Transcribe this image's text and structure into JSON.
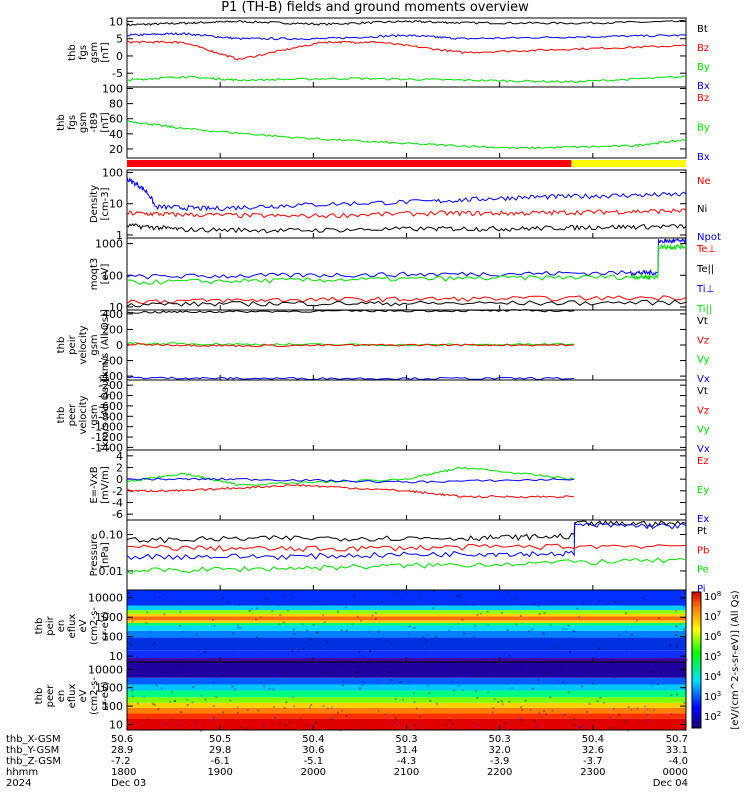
{
  "title": "P1 (TH-B) fields and ground moments overview",
  "colors": {
    "black": "#000000",
    "red": "#ff0000",
    "green": "#00dd00",
    "blue": "#0000ff",
    "yellow": "#ffff00"
  },
  "chart_data": {
    "type": "line",
    "time_range": [
      "2024-12-03 17:30",
      "2024-12-04 00:00"
    ],
    "panels": [
      {
        "id": "fgs",
        "ylabel": [
          "thb",
          "fgs",
          "gsm",
          "[nT]"
        ],
        "ylim": [
          -9,
          11
        ],
        "ticks": [
          10,
          5,
          0,
          -5
        ],
        "legend": [
          {
            "t": "Bt",
            "c": "black"
          },
          {
            "t": "Bz",
            "c": "red"
          },
          {
            "t": "By",
            "c": "green"
          },
          {
            "t": "Bx",
            "c": "blue"
          }
        ],
        "series": [
          {
            "c": "black",
            "x": [
              0,
              0.1,
              0.2,
              0.35,
              0.5,
              0.6,
              0.8,
              1.0
            ],
            "y": [
              9,
              9.5,
              10,
              9.2,
              10,
              9.6,
              9.5,
              10
            ]
          },
          {
            "c": "blue",
            "x": [
              0,
              0.1,
              0.2,
              0.35,
              0.5,
              0.6,
              0.8,
              1.0
            ],
            "y": [
              6,
              6.5,
              5,
              5,
              6,
              5,
              5.5,
              6
            ]
          },
          {
            "c": "red",
            "x": [
              0,
              0.1,
              0.2,
              0.35,
              0.45,
              0.6,
              0.8,
              1.0
            ],
            "y": [
              4,
              4,
              -1,
              4,
              4,
              1,
              2,
              3
            ]
          },
          {
            "c": "green",
            "x": [
              0,
              0.1,
              0.2,
              0.4,
              0.6,
              0.8,
              1.0
            ],
            "y": [
              -7,
              -6,
              -7,
              -6.5,
              -7,
              -7.5,
              -6
            ]
          }
        ]
      },
      {
        "id": "fgsdip",
        "ylabel": [
          "thb",
          "fgs",
          "gsm",
          "-t89",
          "[nT]"
        ],
        "ylim": [
          8,
          102
        ],
        "ticks": [
          100,
          80,
          60,
          40,
          20
        ],
        "legend": [
          {
            "t": "Bz",
            "c": "red"
          },
          {
            "t": "By",
            "c": "green"
          },
          {
            "t": "Bx",
            "c": "blue"
          }
        ],
        "series": [
          {
            "c": "green",
            "x": [
              0,
              0.1,
              0.3,
              0.5,
              0.7,
              0.9,
              1.0
            ],
            "y": [
              57,
              47,
              35,
              27,
              21,
              24,
              32
            ]
          }
        ]
      },
      {
        "id": "density",
        "ylabel": [
          "Density",
          "[cm-3]"
        ],
        "ylim": [
          0.8,
          120
        ],
        "log": true,
        "ticks": [
          100,
          10,
          1
        ],
        "ticklabels": [
          "100",
          "10",
          "1"
        ],
        "legend": [
          {
            "t": "Ne",
            "c": "red"
          },
          {
            "t": "Ni",
            "c": "black"
          },
          {
            "t": "Npot",
            "c": "blue"
          }
        ],
        "series": [
          {
            "c": "blue",
            "x": [
              0,
              0.05,
              0.15,
              0.3,
              0.55,
              0.7,
              0.85,
              1.0
            ],
            "y": [
              60,
              8,
              7,
              9,
              12,
              16,
              18,
              20
            ]
          },
          {
            "c": "red",
            "x": [
              0,
              0.1,
              0.3,
              0.55,
              0.7,
              0.85,
              1.0
            ],
            "y": [
              5,
              4.5,
              4,
              5,
              5,
              5.5,
              6
            ]
          },
          {
            "c": "black",
            "x": [
              0,
              0.1,
              0.3,
              0.55,
              0.7,
              0.85,
              1.0
            ],
            "y": [
              2,
              1.5,
              1.4,
              1.6,
              1.6,
              1.8,
              1.9
            ]
          }
        ]
      },
      {
        "id": "temp",
        "ylabel": [
          "moqt3",
          "[eV]"
        ],
        "ylim": [
          8,
          1500
        ],
        "log": true,
        "ticks": [
          1000,
          100,
          10
        ],
        "ticklabels": [
          "1000",
          "100",
          "10"
        ],
        "legend": [
          {
            "t": "Te⊥",
            "c": "red"
          },
          {
            "t": "Te||",
            "c": "black"
          },
          {
            "t": "Ti⊥",
            "c": "blue"
          },
          {
            "t": "Ti||",
            "c": "green"
          }
        ],
        "series": [
          {
            "c": "blue",
            "x": [
              0,
              0.3,
              0.6,
              0.9,
              0.95,
              0.951,
              1.0
            ],
            "y": [
              90,
              100,
              110,
              120,
              120,
              1200,
              1200
            ]
          },
          {
            "c": "green",
            "x": [
              0,
              0.3,
              0.6,
              0.9,
              0.95,
              0.951,
              1.0
            ],
            "y": [
              60,
              70,
              80,
              90,
              90,
              800,
              800
            ]
          },
          {
            "c": "red",
            "x": [
              0,
              0.3,
              0.6,
              1.0
            ],
            "y": [
              15,
              17,
              18,
              20
            ]
          },
          {
            "c": "black",
            "x": [
              0,
              0.3,
              0.6,
              1.0
            ],
            "y": [
              12,
              13,
              13,
              14
            ]
          }
        ]
      },
      {
        "id": "peirv",
        "ylabel": [
          "thb",
          "peir",
          "velocity",
          "gsm",
          "[km/s (All Qs)]"
        ],
        "ylim": [
          -450,
          450
        ],
        "ticks": [
          400,
          200,
          0,
          -200,
          -400
        ],
        "legend": [
          {
            "t": "Vt",
            "c": "black"
          },
          {
            "t": "Vz",
            "c": "red"
          },
          {
            "t": "Vy",
            "c": "green"
          },
          {
            "t": "Vx",
            "c": "blue"
          }
        ],
        "series": [
          {
            "c": "black",
            "x": [
              0,
              0.2,
              0.5,
              0.8
            ],
            "y": [
              420,
              430,
              440,
              440
            ]
          },
          {
            "c": "green",
            "x": [
              0,
              0.2,
              0.5,
              0.8
            ],
            "y": [
              20,
              10,
              0,
              10
            ]
          },
          {
            "c": "red",
            "x": [
              0,
              0.2,
              0.5,
              0.8
            ],
            "y": [
              10,
              -10,
              0,
              0
            ]
          },
          {
            "c": "blue",
            "x": [
              0,
              0.2,
              0.5,
              0.8
            ],
            "y": [
              -420,
              -430,
              -430,
              -430
            ]
          }
        ]
      },
      {
        "id": "peerv",
        "ylabel": [
          "thb",
          "peer",
          "velocity",
          "gsm",
          "[km/s (All Qs)]"
        ],
        "ylim": [
          -1450,
          -100
        ],
        "ticks": [
          -200,
          -400,
          -600,
          -800,
          -1000,
          -1200,
          -1400
        ],
        "legend": [
          {
            "t": "Vt",
            "c": "black"
          },
          {
            "t": "Vz",
            "c": "red"
          },
          {
            "t": "Vy",
            "c": "green"
          },
          {
            "t": "Vx",
            "c": "blue"
          }
        ],
        "series": []
      },
      {
        "id": "efield",
        "ylabel": [
          "E=-VxB",
          "[mV/m]"
        ],
        "ylim": [
          -7,
          5
        ],
        "ticks": [
          4,
          2,
          0,
          -2,
          -4,
          -6
        ],
        "legend": [
          {
            "t": "Ez",
            "c": "red"
          },
          {
            "t": "Ey",
            "c": "green"
          },
          {
            "t": "Ex",
            "c": "blue"
          }
        ],
        "series": [
          {
            "c": "green",
            "x": [
              0,
              0.1,
              0.2,
              0.5,
              0.6,
              0.8
            ],
            "y": [
              -0.5,
              1,
              -1,
              0,
              2,
              0
            ]
          },
          {
            "c": "blue",
            "x": [
              0,
              0.2,
              0.5,
              0.8
            ],
            "y": [
              0,
              0,
              -0.5,
              0
            ]
          },
          {
            "c": "red",
            "x": [
              0,
              0.1,
              0.3,
              0.5,
              0.6,
              0.8
            ],
            "y": [
              -2,
              -2,
              -1,
              -2,
              -3,
              -3
            ]
          }
        ]
      },
      {
        "id": "pressure",
        "ylabel": [
          "Pressure",
          "[nPa]"
        ],
        "ylim": [
          0.003,
          0.25
        ],
        "log": true,
        "ticks": [
          0.1,
          0.01
        ],
        "ticklabels": [
          "0.10",
          "0.01"
        ],
        "legend": [
          {
            "t": "Pt",
            "c": "black"
          },
          {
            "t": "Pb",
            "c": "red"
          },
          {
            "t": "Pe",
            "c": "green"
          },
          {
            "t": "Pi",
            "c": "blue"
          }
        ],
        "series": [
          {
            "c": "black",
            "x": [
              0,
              0.3,
              0.6,
              0.8,
              0.801,
              1.0
            ],
            "y": [
              0.07,
              0.08,
              0.08,
              0.09,
              0.2,
              0.2
            ]
          },
          {
            "c": "blue",
            "x": [
              0,
              0.3,
              0.6,
              0.8,
              0.801,
              1.0
            ],
            "y": [
              0.025,
              0.025,
              0.03,
              0.03,
              0.18,
              0.17
            ]
          },
          {
            "c": "red",
            "x": [
              0,
              0.3,
              0.6,
              1.0
            ],
            "y": [
              0.045,
              0.04,
              0.045,
              0.05
            ]
          },
          {
            "c": "green",
            "x": [
              0,
              0.3,
              0.6,
              1.0
            ],
            "y": [
              0.01,
              0.012,
              0.015,
              0.02
            ]
          }
        ]
      },
      {
        "id": "peirspec",
        "type": "heatmap",
        "ylabel": [
          "thb",
          "peir",
          "en",
          "eflux",
          "eV",
          "(cm2-s-",
          "sr-eV)"
        ],
        "ylim": [
          5,
          25000
        ],
        "log": true,
        "ticks": [
          10000,
          1000,
          100,
          10
        ],
        "ticklabels": [
          "10000",
          "1000",
          "100",
          "10"
        ]
      },
      {
        "id": "peerspec",
        "type": "heatmap",
        "ylabel": [
          "thb",
          "peer",
          "en",
          "eflux",
          "eV",
          "(cm2-s-",
          "sr-eV)"
        ],
        "ylim": [
          5,
          25000
        ],
        "log": true,
        "ticks": [
          10000,
          1000,
          100,
          10
        ],
        "ticklabels": [
          "10000",
          "1000",
          "100",
          "10"
        ]
      }
    ],
    "colorbar": {
      "label": "[eV/(cm^2-s-sr-eV)] (All Qs)",
      "ticks": [
        "10^8",
        "10^7",
        "10^6",
        "10^5",
        "10^4",
        "10^3",
        "10^2"
      ]
    },
    "x_axis": {
      "rows": [
        {
          "label": "thb_X-GSM",
          "values": [
            "50.6",
            "50.5",
            "50.4",
            "50.3",
            "50.3",
            "50.4",
            "50.7"
          ]
        },
        {
          "label": "thb_Y-GSM",
          "values": [
            "28.9",
            "29.8",
            "30.6",
            "31.4",
            "32.0",
            "32.6",
            "33.1"
          ]
        },
        {
          "label": "thb_Z-GSM",
          "values": [
            "-7.2",
            "-6.1",
            "-5.1",
            "-4.3",
            "-3.9",
            "-3.7",
            "-4.0"
          ]
        },
        {
          "label": "hhmm",
          "values": [
            "1800",
            "1900",
            "2000",
            "2100",
            "2200",
            "2300",
            "0000"
          ]
        },
        {
          "label": "2024",
          "values": [
            "Dec 03",
            "",
            "",
            "",
            "",
            "",
            "Dec 04"
          ]
        }
      ],
      "tick_labels": [
        "1800",
        "1900",
        "2000",
        "2100",
        "2200",
        "2300",
        "0000"
      ]
    }
  }
}
